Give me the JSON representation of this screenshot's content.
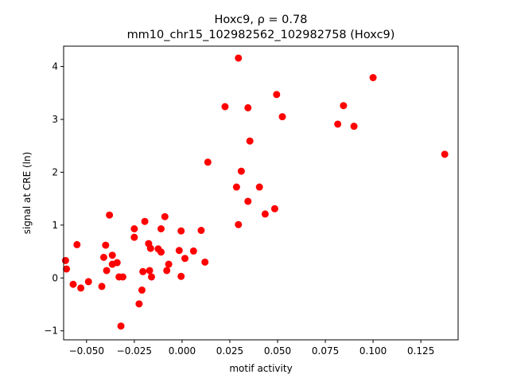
{
  "chart_data": {
    "type": "scatter",
    "title_line1": "Hoxc9, ρ = 0.78",
    "title_line2": "mm10_chr15_102982562_102982758 (Hoxc9)",
    "xlabel": "motif activity",
    "ylabel": "signal at CRE (ln)",
    "xlim": [
      -0.062,
      0.1445
    ],
    "ylim": [
      -1.17,
      4.385
    ],
    "xticks": [
      -0.05,
      -0.025,
      0.0,
      0.025,
      0.05,
      0.075,
      0.1,
      0.125
    ],
    "xtick_labels": [
      "−0.050",
      "−0.025",
      "0.000",
      "0.025",
      "0.050",
      "0.075",
      "0.100",
      "0.125"
    ],
    "yticks": [
      -1,
      0,
      1,
      2,
      3,
      4
    ],
    "ytick_labels": [
      "−1",
      "0",
      "1",
      "2",
      "3",
      "4"
    ],
    "marker_color": "#ff0000",
    "grid": false,
    "points": [
      {
        "x": -0.061,
        "y": 0.33
      },
      {
        "x": -0.0605,
        "y": 0.17
      },
      {
        "x": -0.057,
        "y": -0.12
      },
      {
        "x": -0.055,
        "y": 0.63
      },
      {
        "x": -0.053,
        "y": -0.19
      },
      {
        "x": -0.049,
        "y": -0.07
      },
      {
        "x": -0.042,
        "y": -0.16
      },
      {
        "x": -0.041,
        "y": 0.39
      },
      {
        "x": -0.04,
        "y": 0.62
      },
      {
        "x": -0.0395,
        "y": 0.14
      },
      {
        "x": -0.038,
        "y": 1.19
      },
      {
        "x": -0.0365,
        "y": 0.43
      },
      {
        "x": -0.0365,
        "y": 0.26
      },
      {
        "x": -0.034,
        "y": 0.29
      },
      {
        "x": -0.033,
        "y": 0.02
      },
      {
        "x": -0.032,
        "y": -0.91
      },
      {
        "x": -0.031,
        "y": 0.02
      },
      {
        "x": -0.025,
        "y": 0.93
      },
      {
        "x": -0.025,
        "y": 0.77
      },
      {
        "x": -0.0225,
        "y": -0.49
      },
      {
        "x": -0.021,
        "y": -0.23
      },
      {
        "x": -0.0205,
        "y": 0.12
      },
      {
        "x": -0.0195,
        "y": 1.07
      },
      {
        "x": -0.0175,
        "y": 0.65
      },
      {
        "x": -0.017,
        "y": 0.14
      },
      {
        "x": -0.0165,
        "y": 0.56
      },
      {
        "x": -0.016,
        "y": 0.02
      },
      {
        "x": -0.0125,
        "y": 0.55
      },
      {
        "x": -0.011,
        "y": 0.49
      },
      {
        "x": -0.011,
        "y": 0.93
      },
      {
        "x": -0.009,
        "y": 1.16
      },
      {
        "x": -0.008,
        "y": 0.14
      },
      {
        "x": -0.007,
        "y": 0.26
      },
      {
        "x": -0.0015,
        "y": 0.52
      },
      {
        "x": -0.0005,
        "y": 0.89
      },
      {
        "x": -0.0005,
        "y": 0.03
      },
      {
        "x": 0.0015,
        "y": 0.37
      },
      {
        "x": 0.006,
        "y": 0.51
      },
      {
        "x": 0.01,
        "y": 0.9
      },
      {
        "x": 0.012,
        "y": 0.3
      },
      {
        "x": 0.0135,
        "y": 2.19
      },
      {
        "x": 0.0225,
        "y": 3.24
      },
      {
        "x": 0.0285,
        "y": 1.72
      },
      {
        "x": 0.0295,
        "y": 1.01
      },
      {
        "x": 0.0295,
        "y": 4.16
      },
      {
        "x": 0.031,
        "y": 2.02
      },
      {
        "x": 0.0345,
        "y": 1.45
      },
      {
        "x": 0.0345,
        "y": 3.22
      },
      {
        "x": 0.0355,
        "y": 2.59
      },
      {
        "x": 0.0405,
        "y": 1.72
      },
      {
        "x": 0.0435,
        "y": 1.21
      },
      {
        "x": 0.0485,
        "y": 1.31
      },
      {
        "x": 0.0495,
        "y": 3.47
      },
      {
        "x": 0.0525,
        "y": 3.05
      },
      {
        "x": 0.0815,
        "y": 2.91
      },
      {
        "x": 0.0845,
        "y": 3.26
      },
      {
        "x": 0.09,
        "y": 2.87
      },
      {
        "x": 0.1,
        "y": 3.79
      },
      {
        "x": 0.1375,
        "y": 2.34
      }
    ]
  }
}
